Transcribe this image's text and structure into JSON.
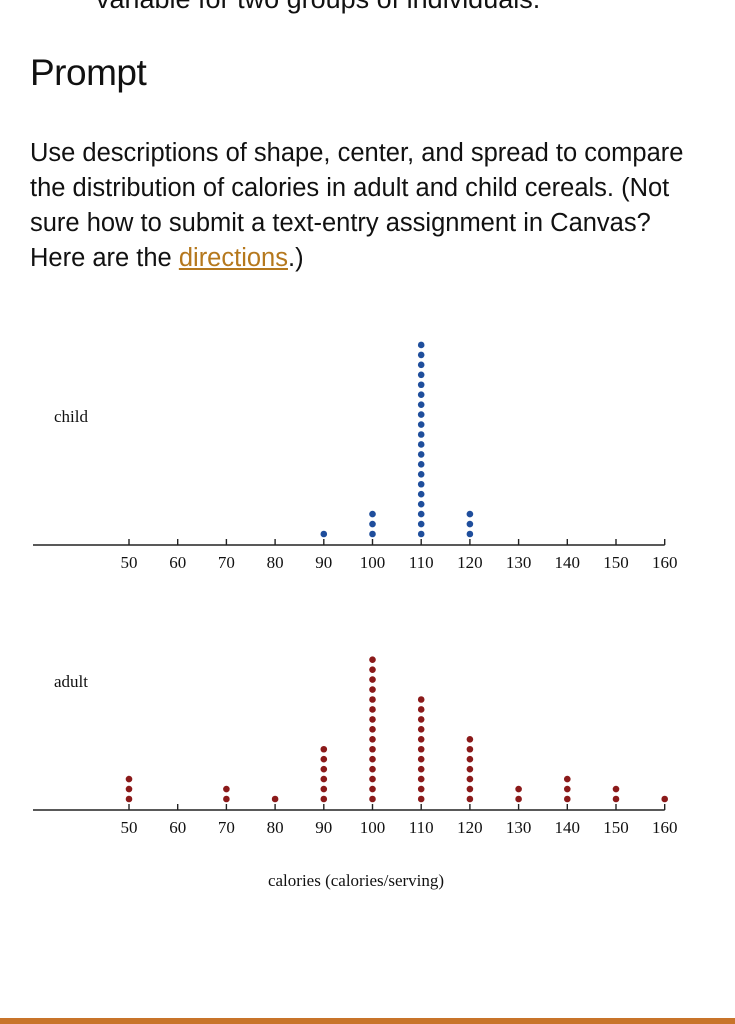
{
  "page": {
    "clipped_text": "variable for two groups of individuals.",
    "heading": "Prompt",
    "body_text_before_link": "Use descriptions of shape, center, and spread to compare the distribution of calories in adult and child cereals. (Not sure how to submit a text-entry assignment in Canvas? Here are the ",
    "link_text": "directions",
    "body_text_after_link": ".)",
    "accent_color": "#c8742a",
    "link_color": "#b5781d"
  },
  "chart_data": {
    "type": "dotplot",
    "title": "",
    "xlabel": "calories (calories/serving)",
    "ylabel": "",
    "x_ticks": [
      50,
      60,
      70,
      80,
      90,
      100,
      110,
      120,
      130,
      140,
      150,
      160
    ],
    "xlim": [
      50,
      160
    ],
    "grid": false,
    "series": [
      {
        "name": "child",
        "color": "#1f4e9c",
        "categories": [
          90,
          100,
          110,
          120
        ],
        "counts": [
          1,
          3,
          20,
          3
        ]
      },
      {
        "name": "adult",
        "color": "#8b1a1a",
        "categories": [
          50,
          70,
          80,
          90,
          100,
          110,
          120,
          130,
          140,
          150,
          160
        ],
        "counts": [
          3,
          2,
          1,
          6,
          15,
          11,
          7,
          2,
          3,
          2,
          1
        ]
      }
    ]
  }
}
